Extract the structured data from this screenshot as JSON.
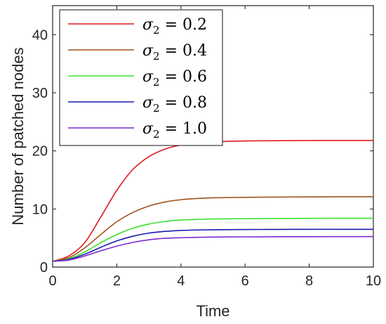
{
  "chart_data": {
    "type": "line",
    "xlabel": "Time",
    "ylabel": "Number of patched nodes",
    "xlim": [
      0,
      10
    ],
    "ylim": [
      0,
      45
    ],
    "x_ticks": [
      "0",
      "2",
      "4",
      "6",
      "8",
      "10"
    ],
    "y_ticks": [
      "0",
      "10",
      "20",
      "30",
      "40"
    ],
    "grid": false,
    "legend_position": "top-left",
    "x": [
      0,
      0.5,
      1,
      1.5,
      2,
      2.5,
      3,
      3.5,
      4,
      4.5,
      5,
      6,
      7,
      8,
      9,
      10
    ],
    "series": [
      {
        "name_symbol": "σ",
        "name_subscript": "2",
        "name_value": " = 0.2",
        "color": "#e01a1a",
        "values": [
          1.0,
          1.9,
          4.2,
          8.6,
          13.2,
          16.8,
          19.0,
          20.3,
          21.0,
          21.35,
          21.55,
          21.7,
          21.75,
          21.78,
          21.8,
          21.8
        ]
      },
      {
        "name_symbol": "σ",
        "name_subscript": "2",
        "name_value": " = 0.4",
        "color": "#a0521e",
        "values": [
          1.0,
          1.6,
          3.3,
          5.6,
          7.8,
          9.4,
          10.5,
          11.2,
          11.6,
          11.8,
          11.92,
          12.0,
          12.05,
          12.08,
          12.1,
          12.1
        ]
      },
      {
        "name_symbol": "σ",
        "name_subscript": "2",
        "name_value": " = 0.6",
        "color": "#3be02b",
        "values": [
          1.0,
          1.4,
          2.6,
          4.2,
          5.6,
          6.7,
          7.4,
          7.85,
          8.1,
          8.2,
          8.28,
          8.33,
          8.36,
          8.38,
          8.4,
          8.4
        ]
      },
      {
        "name_symbol": "σ",
        "name_subscript": "2",
        "name_value": " = 0.8",
        "color": "#1a1ab0",
        "values": [
          1.0,
          1.3,
          2.2,
          3.4,
          4.5,
          5.3,
          5.85,
          6.15,
          6.3,
          6.38,
          6.42,
          6.46,
          6.48,
          6.5,
          6.5,
          6.5
        ]
      },
      {
        "name_symbol": "σ",
        "name_subscript": "2",
        "name_value": " = 1.0",
        "color": "#7a2bd0",
        "values": [
          1.0,
          1.2,
          1.9,
          2.8,
          3.6,
          4.25,
          4.7,
          4.95,
          5.05,
          5.12,
          5.16,
          5.2,
          5.22,
          5.23,
          5.24,
          5.25
        ]
      }
    ]
  }
}
